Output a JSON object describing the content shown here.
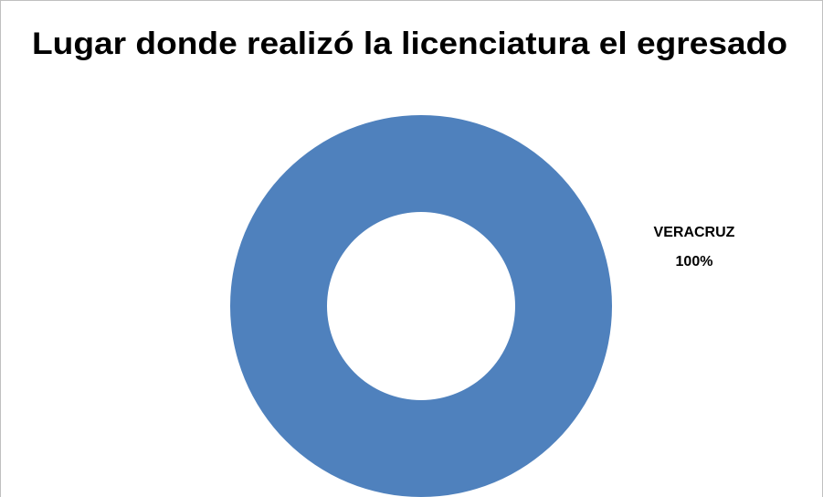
{
  "chart_data": {
    "type": "doughnut",
    "title": "Lugar donde realizó la licenciatura el egresado",
    "categories": [
      "VERACRUZ"
    ],
    "values": [
      100
    ],
    "value_labels": [
      "100%"
    ],
    "colors": [
      "#4f81bd"
    ]
  }
}
